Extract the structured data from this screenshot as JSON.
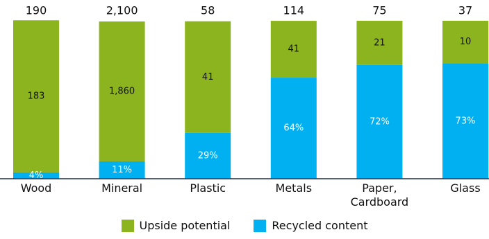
{
  "chart_data": {
    "type": "bar",
    "categories": [
      "Wood",
      "Mineral",
      "Plastic",
      "Metals",
      "Paper, Cardboard",
      "Glass"
    ],
    "totals": {
      "values": [
        190,
        2100,
        58,
        114,
        75,
        37
      ],
      "value_labels": [
        "190",
        "2,100",
        "58",
        "114",
        "75",
        "37"
      ]
    },
    "series": [
      {
        "name": "Upside potential",
        "color": "#8cb41e",
        "values": [
          183,
          1860,
          41,
          41,
          21,
          10
        ],
        "value_labels": [
          "183",
          "1,860",
          "41",
          "41",
          "21",
          "10"
        ]
      },
      {
        "name": "Recycled content",
        "color": "#00b0f0",
        "values": [
          4,
          11,
          29,
          64,
          72,
          73
        ],
        "value_labels": [
          "4%",
          "11%",
          "29%",
          "64%",
          "72%",
          "73%"
        ]
      }
    ]
  }
}
